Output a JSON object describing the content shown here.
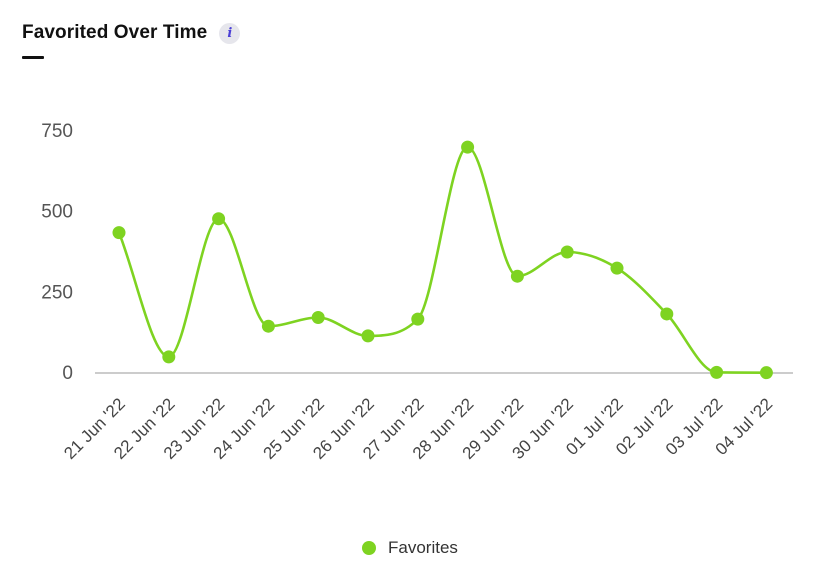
{
  "header": {
    "title": "Favorited Over Time",
    "info_icon": "info-icon",
    "info_glyph": "i"
  },
  "chart_data": {
    "type": "line",
    "title": "Favorited Over Time",
    "xlabel": "",
    "ylabel": "",
    "ylim": [
      0,
      750
    ],
    "y_ticks": [
      0,
      250,
      500,
      750
    ],
    "grid": false,
    "legend_position": "bottom",
    "categories": [
      "21 Jun '22",
      "22 Jun '22",
      "23 Jun '22",
      "24 Jun '22",
      "25 Jun '22",
      "26 Jun '22",
      "27 Jun '22",
      "28 Jun '22",
      "29 Jun '22",
      "30 Jun '22",
      "01 Jul '22",
      "02 Jul '22",
      "03 Jul '22",
      "04 Jul '22"
    ],
    "series": [
      {
        "name": "Favorites",
        "color": "#7ed321",
        "values": [
          435,
          50,
          478,
          145,
          172,
          115,
          167,
          700,
          300,
          375,
          325,
          183,
          2,
          1
        ]
      }
    ]
  },
  "legend": {
    "label": "Favorites",
    "color": "#7ed321"
  }
}
